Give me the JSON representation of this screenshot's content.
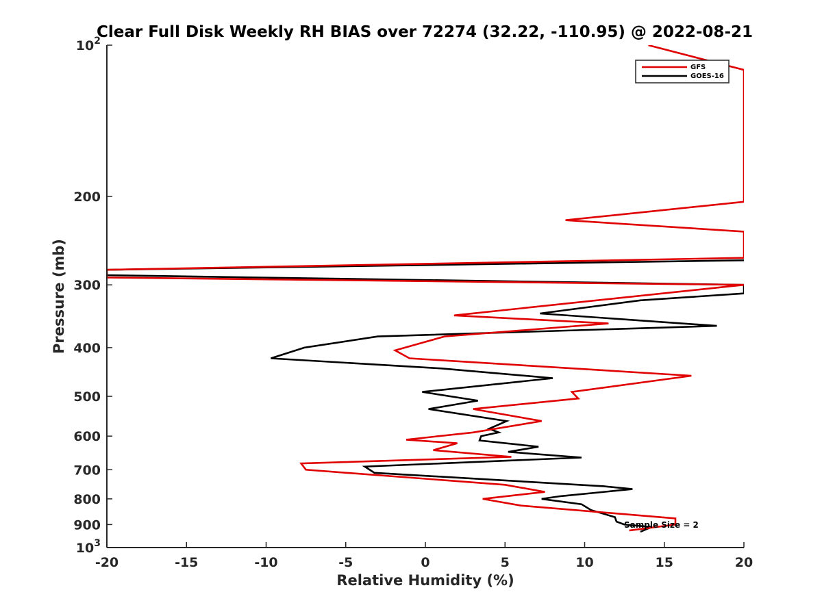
{
  "chart_data": {
    "type": "line",
    "title": "Clear Full Disk Weekly RH BIAS over 72274 (32.22, -110.95) @ 2022-08-21",
    "xlabel": "Relative Humidity (%)",
    "ylabel": "Pressure (mb)",
    "xlim": [
      -20,
      20
    ],
    "ylim": [
      100,
      1000
    ],
    "y_scale": "log",
    "y_reversed": true,
    "grid": false,
    "legend_position": "top-right",
    "x_ticks": [
      -20,
      -15,
      -10,
      -5,
      0,
      5,
      10,
      15,
      20
    ],
    "x_tick_labels": [
      "-20",
      "-15",
      "-10",
      "-5",
      "0",
      "5",
      "10",
      "15",
      "20"
    ],
    "y_ticks": [
      100,
      200,
      300,
      400,
      500,
      600,
      700,
      800,
      900,
      1000
    ],
    "y_tick_labels": [
      "10^2",
      "200",
      "300",
      "400",
      "500",
      "600",
      "700",
      "800",
      "900",
      "10^3"
    ],
    "annotation": "Sample Size = 2",
    "series": [
      {
        "name": "GFS",
        "color": "#e00000",
        "points": [
          [
            12.8,
            925
          ],
          [
            15.7,
            900
          ],
          [
            15.7,
            875
          ],
          [
            6.0,
            825
          ],
          [
            3.6,
            800
          ],
          [
            7.5,
            775
          ],
          [
            5.0,
            750
          ],
          [
            -7.5,
            700
          ],
          [
            -7.8,
            680
          ],
          [
            5.4,
            660
          ],
          [
            0.5,
            640
          ],
          [
            2.0,
            620
          ],
          [
            -1.2,
            610
          ],
          [
            3.0,
            590
          ],
          [
            7.3,
            560
          ],
          [
            3.0,
            530
          ],
          [
            9.6,
            505
          ],
          [
            9.2,
            490
          ],
          [
            16.7,
            455
          ],
          [
            -1.0,
            420
          ],
          [
            -1.9,
            405
          ],
          [
            1.2,
            380
          ],
          [
            11.5,
            358
          ],
          [
            1.8,
            345
          ],
          [
            20.0,
            300
          ],
          [
            -20.0,
            290
          ],
          [
            -20.0,
            280
          ],
          [
            20.0,
            265
          ],
          [
            20.0,
            235
          ],
          [
            8.8,
            223
          ],
          [
            20.0,
            205
          ],
          [
            20.0,
            112
          ],
          [
            14.0,
            100
          ]
        ]
      },
      {
        "name": "GOES-16",
        "color": "#000000",
        "points": [
          [
            13.5,
            930
          ],
          [
            14.2,
            910
          ],
          [
            12.5,
            900
          ],
          [
            12.0,
            888
          ],
          [
            11.9,
            870
          ],
          [
            10.4,
            842
          ],
          [
            9.8,
            820
          ],
          [
            7.3,
            800
          ],
          [
            8.5,
            790
          ],
          [
            13.0,
            765
          ],
          [
            11.2,
            755
          ],
          [
            -3.2,
            710
          ],
          [
            -3.8,
            690
          ],
          [
            9.8,
            662
          ],
          [
            5.2,
            645
          ],
          [
            7.1,
            630
          ],
          [
            3.4,
            612
          ],
          [
            3.5,
            600
          ],
          [
            4.6,
            590
          ],
          [
            4.0,
            580
          ],
          [
            5.1,
            560
          ],
          [
            0.2,
            530
          ],
          [
            3.3,
            510
          ],
          [
            -0.2,
            490
          ],
          [
            8.0,
            460
          ],
          [
            1.0,
            440
          ],
          [
            -9.7,
            420
          ],
          [
            -7.6,
            400
          ],
          [
            -3.0,
            380
          ],
          [
            18.3,
            362
          ],
          [
            7.2,
            342
          ],
          [
            13.5,
            322
          ],
          [
            20.0,
            312
          ],
          [
            20.0,
            300
          ],
          [
            -20.0,
            287
          ],
          [
            -20.0,
            280
          ],
          [
            20.0,
            268
          ]
        ]
      }
    ]
  }
}
